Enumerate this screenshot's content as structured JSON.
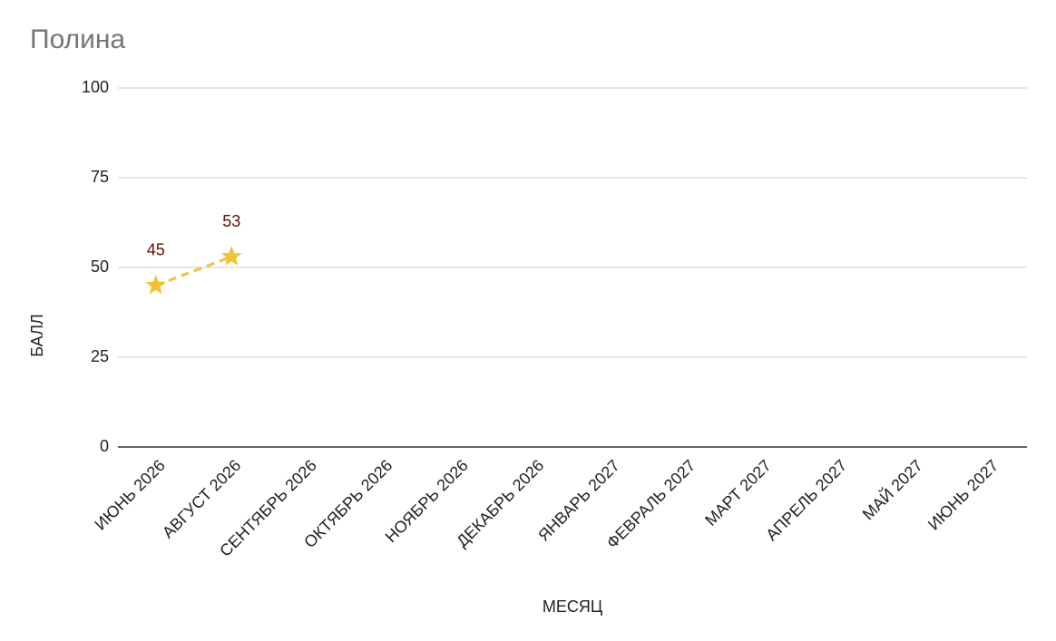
{
  "chart_data": {
    "type": "line",
    "title": "Полина",
    "x_label": "МЕСЯЦ",
    "y_label": "БАЛЛ",
    "categories": [
      "ИЮНЬ 2026",
      "АВГУСТ 2026",
      "СЕНТЯБРЬ 2026",
      "ОКТЯБРЬ 2026",
      "НОЯБРЬ 2026",
      "ДЕКАБРЬ 2026",
      "ЯНВАРЬ 2027",
      "ФЕВРАЛЬ 2027",
      "МАРТ 2027",
      "АПРЕЛЬ 2027",
      "МАЙ 2027",
      "ИЮНЬ 2027"
    ],
    "values": [
      45,
      53,
      null,
      null,
      null,
      null,
      null,
      null,
      null,
      null,
      null,
      null
    ],
    "color": "#f1c232",
    "line_style": "dashed",
    "marker": "star",
    "data_labels": true,
    "ylim": [
      0,
      100
    ],
    "yticks": [
      0,
      25,
      50,
      75,
      100
    ],
    "grid": true
  }
}
